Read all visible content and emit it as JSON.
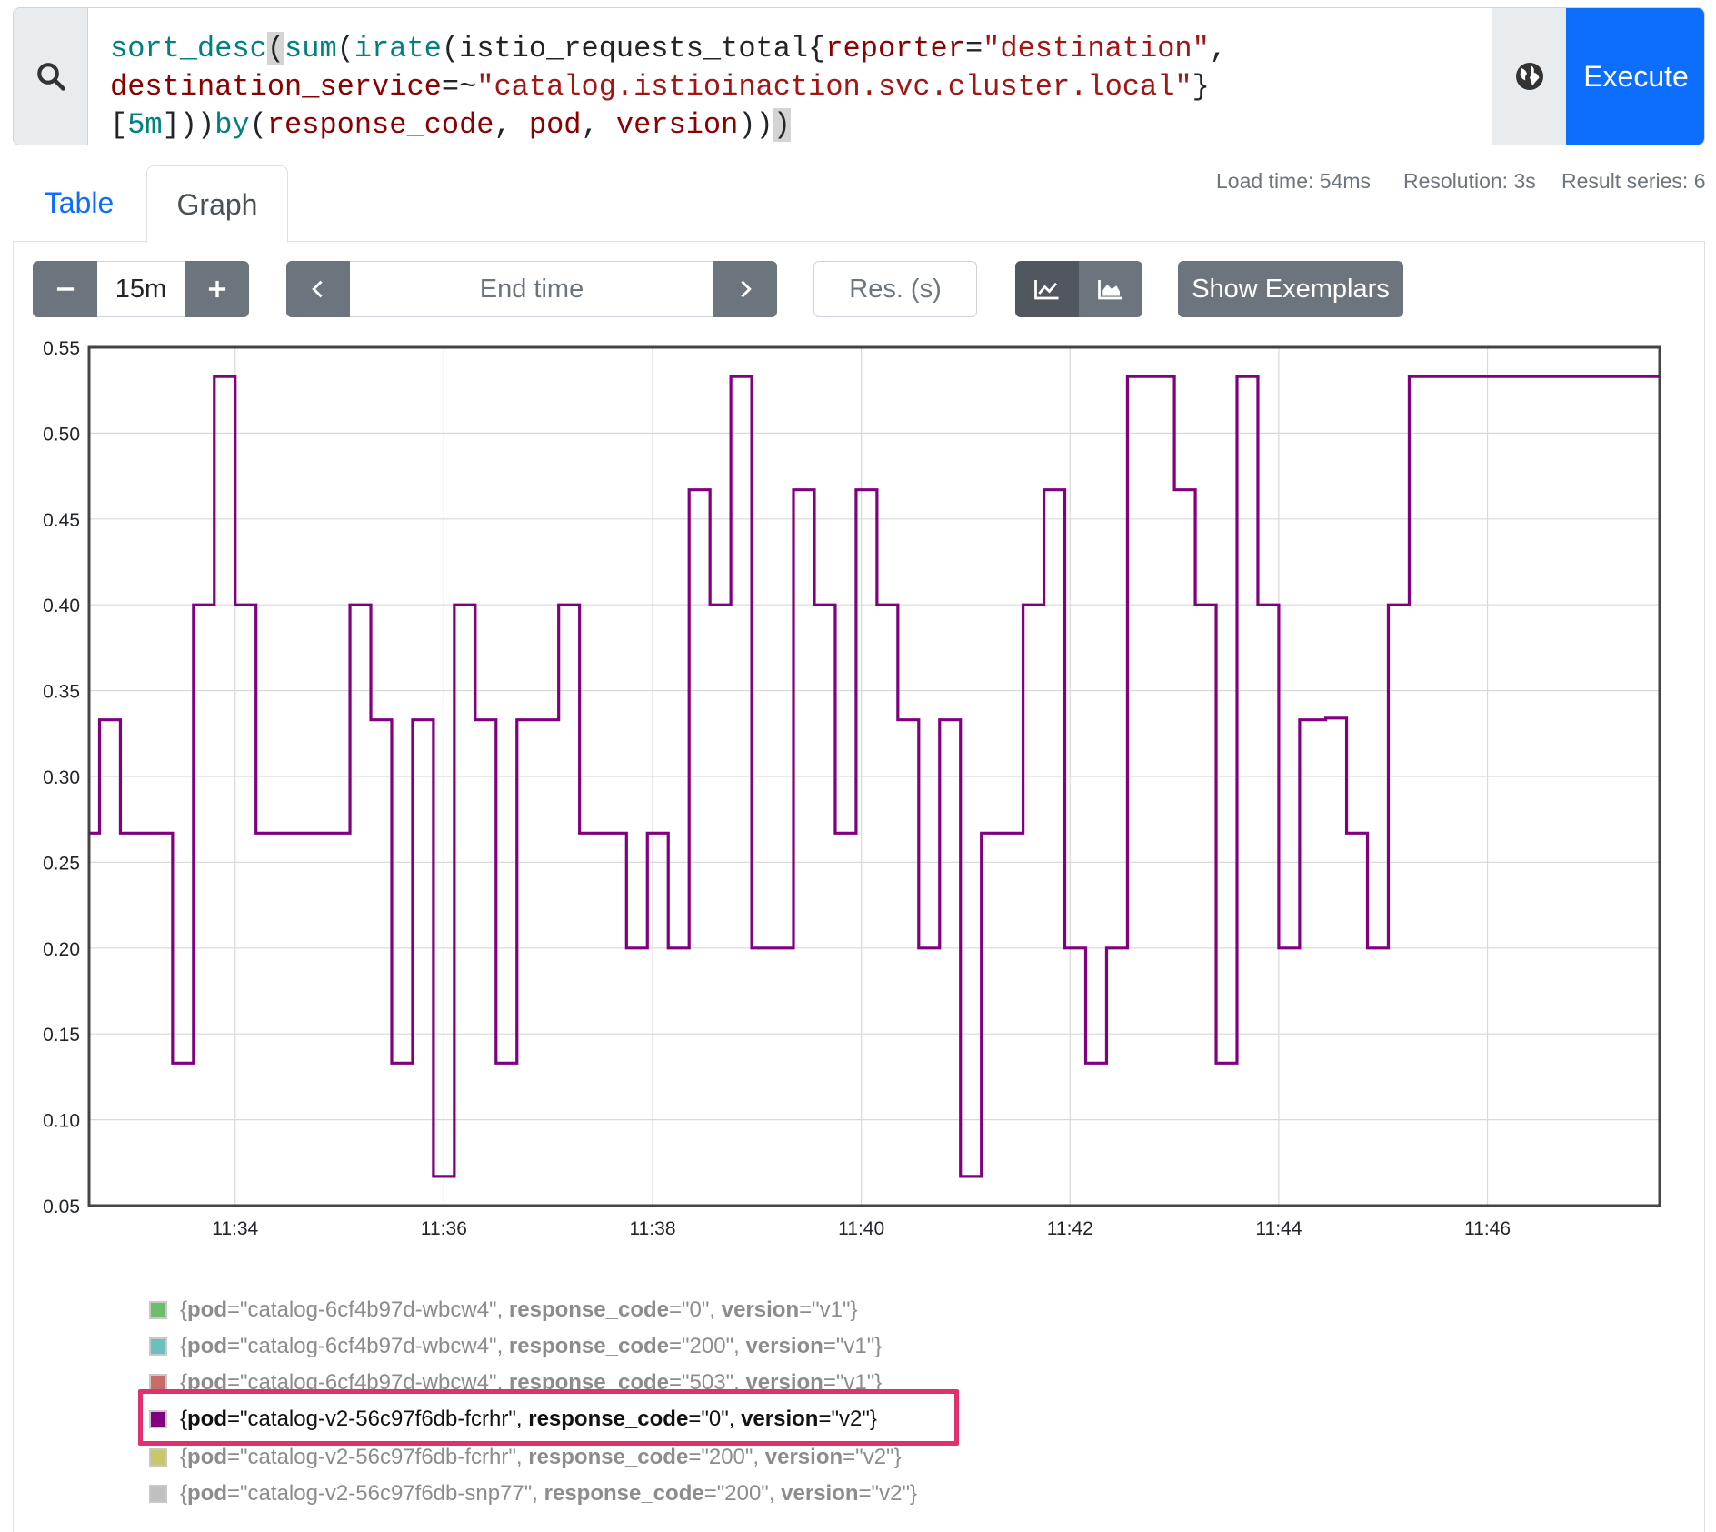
{
  "query": {
    "tokens": [
      {
        "t": "sort_desc",
        "c": "fn"
      },
      {
        "t": "(",
        "c": "plain br-hl"
      },
      {
        "t": "sum",
        "c": "fn"
      },
      {
        "t": "(",
        "c": "plain"
      },
      {
        "t": "irate",
        "c": "fn"
      },
      {
        "t": "(istio_requests_total{",
        "c": "plain"
      },
      {
        "t": "reporter",
        "c": "lbl"
      },
      {
        "t": "=",
        "c": "plain"
      },
      {
        "t": "\"destination\"",
        "c": "str"
      },
      {
        "t": ",\n",
        "c": "plain"
      },
      {
        "t": "destination_service",
        "c": "lbl"
      },
      {
        "t": "=~",
        "c": "plain"
      },
      {
        "t": "\"catalog.istioinaction.svc.cluster.local\"",
        "c": "str"
      },
      {
        "t": "}\n[",
        "c": "plain"
      },
      {
        "t": "5m",
        "c": "fn"
      },
      {
        "t": "]))",
        "c": "plain"
      },
      {
        "t": "by",
        "c": "fn"
      },
      {
        "t": "(",
        "c": "plain"
      },
      {
        "t": "response_code",
        "c": "lbl"
      },
      {
        "t": ", ",
        "c": "plain"
      },
      {
        "t": "pod",
        "c": "lbl"
      },
      {
        "t": ", ",
        "c": "plain"
      },
      {
        "t": "version",
        "c": "lbl"
      },
      {
        "t": "))",
        "c": "plain"
      },
      {
        "t": ")",
        "c": "plain br-hl"
      }
    ],
    "execute_label": "Execute",
    "search_icon": "search-icon",
    "globe_icon": "globe-icon"
  },
  "tabs": {
    "table": "Table",
    "graph": "Graph"
  },
  "stats": {
    "load_time": "Load time: 54ms",
    "resolution": "Resolution: 3s",
    "result_series": "Result series: 6"
  },
  "controls": {
    "range_value": "15m",
    "end_time_placeholder": "End time",
    "resolution_placeholder": "Res. (s)",
    "show_exemplars": "Show Exemplars",
    "minus_icon": "minus-icon",
    "plus_icon": "plus-icon",
    "prev_icon": "chevron-left-icon",
    "next_icon": "chevron-right-icon",
    "line_chart_icon": "line-chart-icon",
    "stacked_chart_icon": "area-chart-icon"
  },
  "legend": [
    {
      "pod": "catalog-6cf4b97d-wbcw4",
      "response_code": "0",
      "version": "v1",
      "color": "#6bbf6b",
      "active": false
    },
    {
      "pod": "catalog-6cf4b97d-wbcw4",
      "response_code": "200",
      "version": "v1",
      "color": "#6bbfbf",
      "active": false
    },
    {
      "pod": "catalog-6cf4b97d-wbcw4",
      "response_code": "503",
      "version": "v1",
      "color": "#c86b6b",
      "active": false
    },
    {
      "pod": "catalog-v2-56c97f6db-fcrhr",
      "response_code": "0",
      "version": "v2",
      "color": "#800080",
      "active": true
    },
    {
      "pod": "catalog-v2-56c97f6db-fcrhr",
      "response_code": "200",
      "version": "v2",
      "color": "#c8c86b",
      "active": false
    },
    {
      "pod": "catalog-v2-56c97f6db-snp77",
      "response_code": "200",
      "version": "v2",
      "color": "#c0c0c0",
      "active": false
    }
  ],
  "chart_data": {
    "type": "line",
    "step": true,
    "grid": true,
    "line_color": "#800080",
    "ylim": [
      0.05,
      0.55
    ],
    "y_ticks": [
      "0.05",
      "0.10",
      "0.15",
      "0.20",
      "0.25",
      "0.30",
      "0.35",
      "0.40",
      "0.45",
      "0.50",
      "0.55"
    ],
    "x_ticks": [
      "11:34",
      "11:36",
      "11:38",
      "11:40",
      "11:42",
      "11:44",
      "11:46"
    ],
    "x_tick_minutes": [
      34,
      36,
      38,
      40,
      42,
      44,
      46
    ],
    "xlim_minutes": [
      32.6,
      47.65
    ],
    "series": [
      {
        "name": "{pod=\"catalog-v2-56c97f6db-fcrhr\", response_code=\"0\", version=\"v2\"}",
        "points": [
          [
            32.6,
            0.267
          ],
          [
            32.7,
            0.333
          ],
          [
            32.9,
            0.267
          ],
          [
            33.4,
            0.133
          ],
          [
            33.6,
            0.4
          ],
          [
            33.8,
            0.533
          ],
          [
            34.0,
            0.4
          ],
          [
            34.2,
            0.267
          ],
          [
            35.1,
            0.4
          ],
          [
            35.3,
            0.333
          ],
          [
            35.5,
            0.133
          ],
          [
            35.7,
            0.333
          ],
          [
            35.9,
            0.067
          ],
          [
            36.1,
            0.4
          ],
          [
            36.3,
            0.333
          ],
          [
            36.5,
            0.133
          ],
          [
            36.7,
            0.333
          ],
          [
            37.1,
            0.4
          ],
          [
            37.3,
            0.267
          ],
          [
            37.75,
            0.2
          ],
          [
            37.95,
            0.267
          ],
          [
            38.15,
            0.2
          ],
          [
            38.35,
            0.467
          ],
          [
            38.55,
            0.4
          ],
          [
            38.75,
            0.533
          ],
          [
            38.95,
            0.2
          ],
          [
            39.35,
            0.467
          ],
          [
            39.55,
            0.4
          ],
          [
            39.75,
            0.267
          ],
          [
            39.95,
            0.467
          ],
          [
            40.15,
            0.4
          ],
          [
            40.35,
            0.333
          ],
          [
            40.55,
            0.2
          ],
          [
            40.75,
            0.333
          ],
          [
            40.95,
            0.067
          ],
          [
            41.15,
            0.267
          ],
          [
            41.55,
            0.4
          ],
          [
            41.75,
            0.467
          ],
          [
            41.95,
            0.2
          ],
          [
            42.15,
            0.133
          ],
          [
            42.35,
            0.2
          ],
          [
            42.55,
            0.533
          ],
          [
            43.0,
            0.467
          ],
          [
            43.2,
            0.4
          ],
          [
            43.4,
            0.133
          ],
          [
            43.6,
            0.533
          ],
          [
            43.8,
            0.4
          ],
          [
            44.0,
            0.2
          ],
          [
            44.2,
            0.333
          ],
          [
            44.45,
            0.334
          ],
          [
            44.65,
            0.267
          ],
          [
            44.85,
            0.2
          ],
          [
            45.05,
            0.4
          ],
          [
            45.25,
            0.533
          ],
          [
            45.45,
            0.533
          ]
        ]
      }
    ]
  }
}
